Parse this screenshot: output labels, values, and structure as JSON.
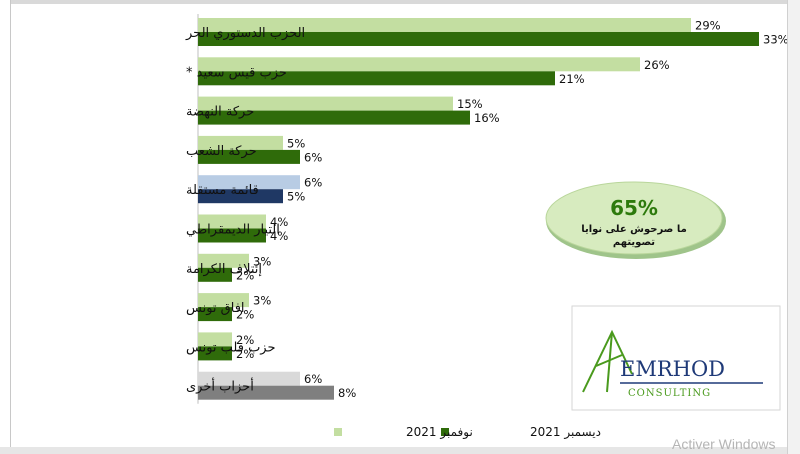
{
  "chart_data": {
    "type": "bar",
    "orientation": "horizontal",
    "categories": [
      "الحزب الدستوري الحر",
      "حزب قيس سعيد *",
      "حركة النهضة",
      "حركة الشعب",
      "قائمة مستقلة",
      "التيار الديمقراطي",
      "إئتلاف الكرامة",
      "افاق تونس",
      "حزب قلب تونس",
      "أحزاب أخرى"
    ],
    "series": [
      {
        "name": "نوفمبر 2021",
        "values": [
          29,
          26,
          15,
          5,
          6,
          4,
          3,
          3,
          2,
          6
        ]
      },
      {
        "name": "ديسمبر 2021",
        "values": [
          33,
          21,
          16,
          6,
          5,
          4,
          2,
          2,
          2,
          8
        ]
      }
    ],
    "value_suffix": "%",
    "legend_position": "bottom",
    "grid": false,
    "colors": {
      "nov": "#c3dea1",
      "dec": "#2f6b0a",
      "nov_independent": "#b8cce4",
      "dec_independent": "#1f3864",
      "nov_others": "#d9d9d9",
      "dec_others": "#7f7f7f"
    }
  },
  "callout": {
    "value": "65%",
    "line1": "ما صرحوش على نوايا",
    "line2": "تصويتهم",
    "value_color": "#2d7a0c",
    "bg_color": "#d7ebbf"
  },
  "logo": {
    "name": "EMRHOD",
    "subtitle": "CONSULTING",
    "name_color": "#1f3a78",
    "mark_color": "#4a9a1d"
  },
  "watermark": "Activer Windows"
}
